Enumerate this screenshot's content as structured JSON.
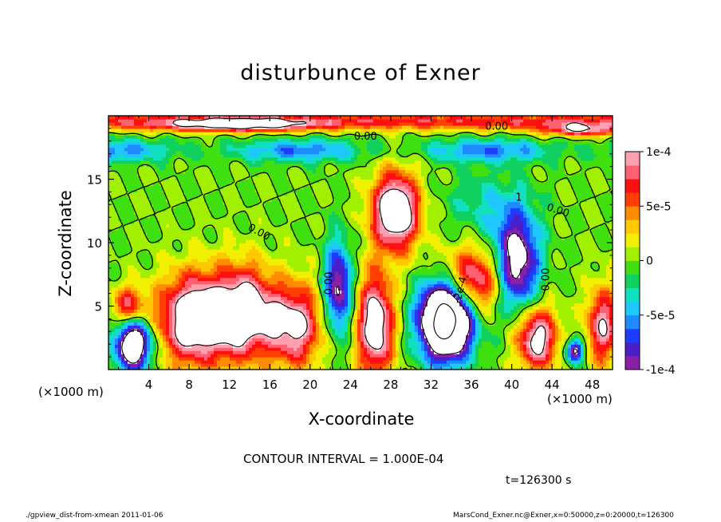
{
  "chart_data": {
    "type": "heatmap",
    "title": "disturbunce of Exner",
    "xlabel": "X-coordinate",
    "ylabel": "Z-coordinate",
    "x_unit": "(×1000 m)",
    "x_unit_right": "(×1000 m)",
    "xlim": [
      0,
      50
    ],
    "ylim": [
      0,
      20
    ],
    "x_ticks": [
      4,
      8,
      12,
      16,
      20,
      24,
      28,
      32,
      36,
      40,
      44,
      48
    ],
    "y_ticks": [
      5,
      10,
      15
    ],
    "colorbar": {
      "min": -0.0001,
      "max": 0.0001,
      "tick_labels": [
        "1e-4",
        "5e-5",
        "0",
        "-5e-5",
        "-1e-4"
      ],
      "tick_values": [
        0.0001,
        5e-05,
        0,
        -5e-05,
        -0.0001
      ],
      "colors": [
        "#8a1fa8",
        "#4a1ec8",
        "#1e3cff",
        "#1e8cff",
        "#1ec8ff",
        "#10e0c0",
        "#10d060",
        "#40e010",
        "#a0f000",
        "#f0f000",
        "#ffc800",
        "#ff8c00",
        "#ff4000",
        "#ff1010",
        "#ff6070",
        "#ffa0b0"
      ],
      "over_color": "#ffffff"
    },
    "contour_labels": [
      "0.00",
      "0.00",
      "0.00",
      "0.00",
      "0.00",
      "0.00",
      "-2e-4",
      "1"
    ],
    "contour_interval_text": "CONTOUR INTERVAL = 1.000E-04",
    "time_text": "t=126300 s"
  },
  "footer": {
    "left": "./gpview_dist-from-xmean  2011-01-06",
    "right": "MarsCond_Exner.nc@Exner,x=0:50000,z=0:20000,t=126300"
  }
}
